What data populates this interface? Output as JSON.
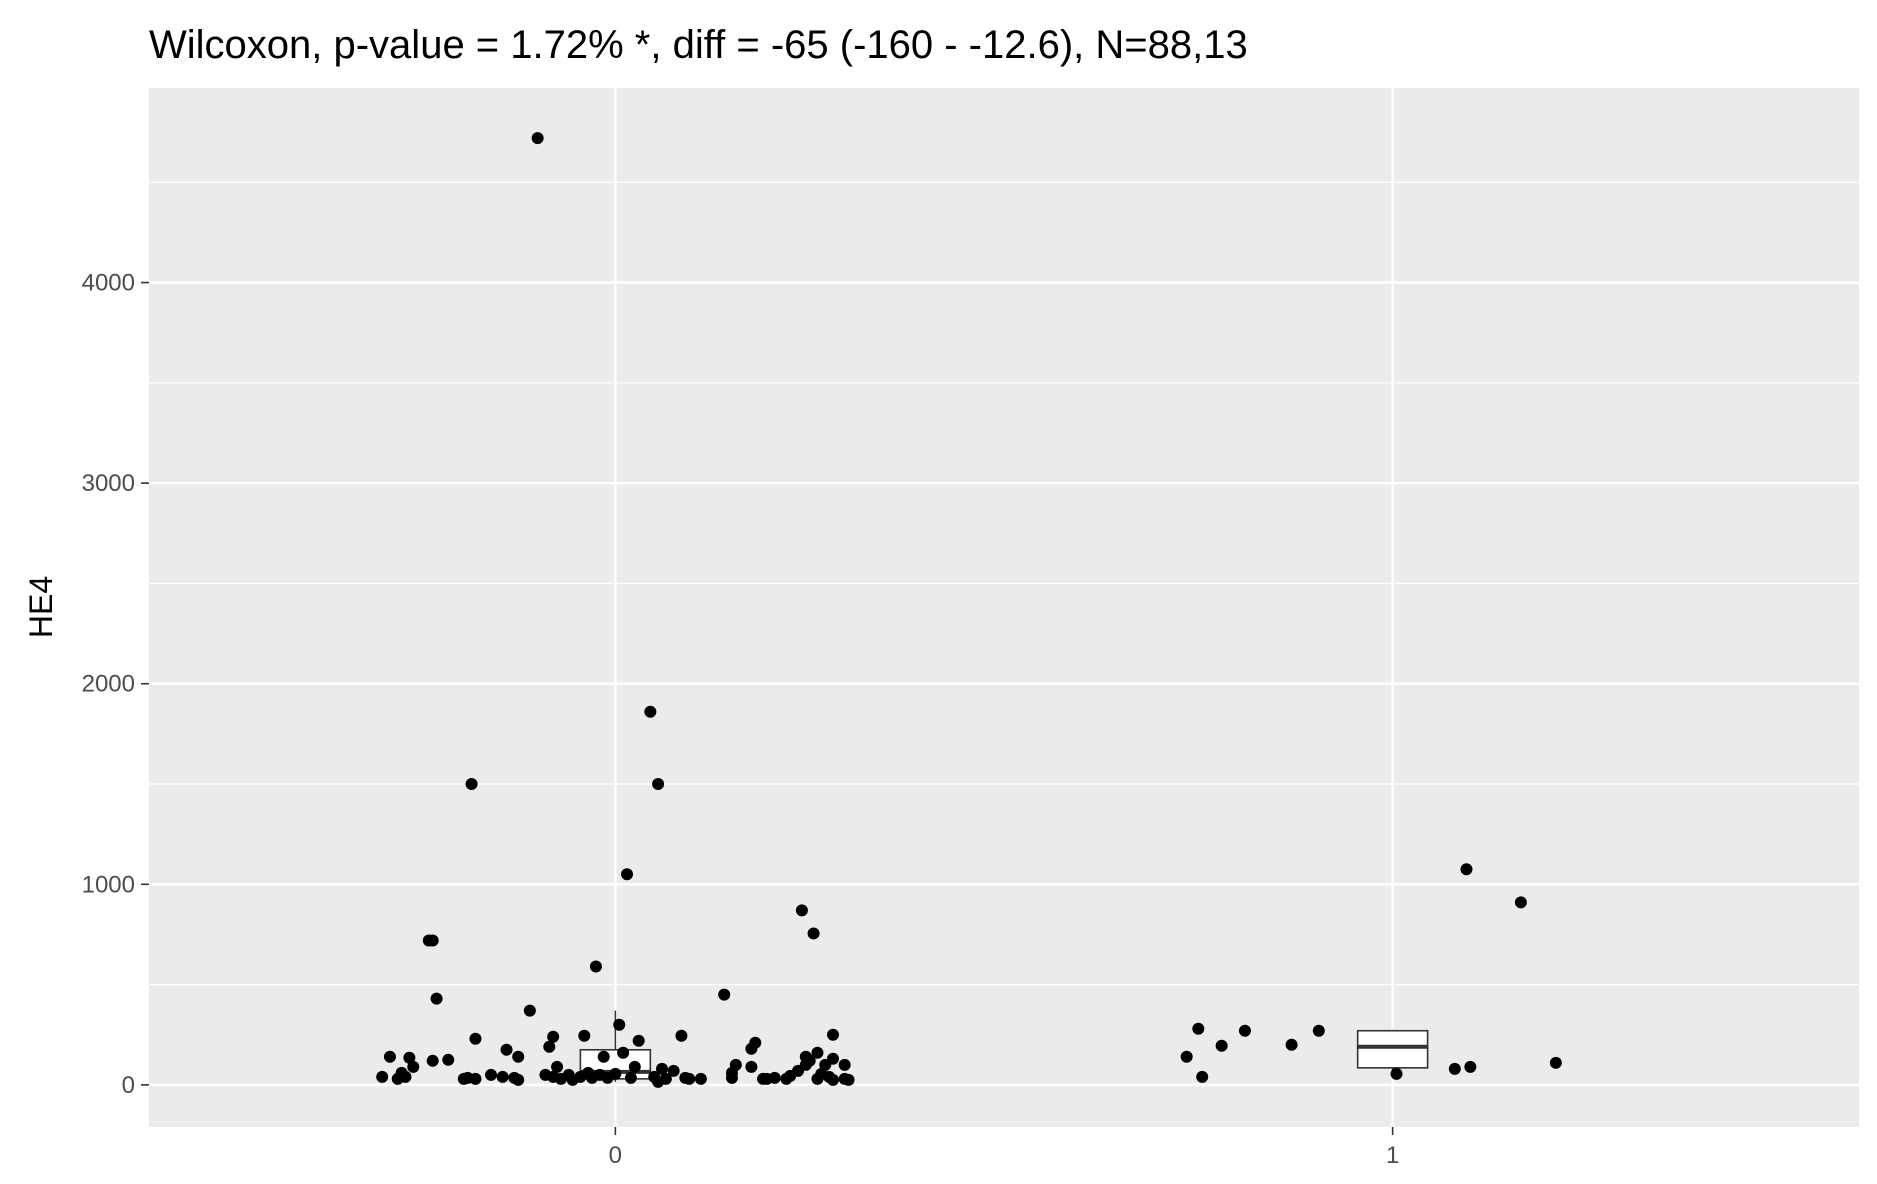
{
  "chart_data": {
    "type": "scatter",
    "title": "Wilcoxon, p-value = 1.72% *, diff = -65 (-160 - -12.6), N=88,13",
    "xlabel": "",
    "ylabel": "HE4",
    "categories": [
      "0",
      "1"
    ],
    "ylim": [
      -210,
      4970
    ],
    "yticks": [
      0,
      1000,
      2000,
      3000,
      4000
    ],
    "ytick_labels": [
      "0",
      "1000",
      "2000",
      "3000",
      "4000"
    ],
    "grid": true,
    "legend": "none",
    "colors": {
      "panel": "#ebebeb",
      "grid": "#ffffff",
      "points": "#000000",
      "box_fill": "#ffffff",
      "box_line": "#333333",
      "text": "#000000",
      "tick_text": "#4d4d4d"
    },
    "boxplots": [
      {
        "category": "0",
        "q1": 30,
        "median": 65,
        "q3": 175,
        "whisker_low": 15,
        "whisker_high": 370
      },
      {
        "category": "1",
        "q1": 85,
        "median": 190,
        "q3": 270,
        "whisker_low": 45,
        "whisker_high": 275
      }
    ],
    "series": [
      {
        "category": "0",
        "points": [
          {
            "x": -0.3,
            "y": 40
          },
          {
            "x": -0.29,
            "y": 140
          },
          {
            "x": -0.28,
            "y": 30
          },
          {
            "x": -0.275,
            "y": 60
          },
          {
            "x": -0.27,
            "y": 40
          },
          {
            "x": -0.265,
            "y": 135
          },
          {
            "x": -0.26,
            "y": 90
          },
          {
            "x": -0.24,
            "y": 720
          },
          {
            "x": -0.235,
            "y": 720
          },
          {
            "x": -0.235,
            "y": 120
          },
          {
            "x": -0.23,
            "y": 430
          },
          {
            "x": -0.215,
            "y": 125
          },
          {
            "x": -0.195,
            "y": 30
          },
          {
            "x": -0.19,
            "y": 35
          },
          {
            "x": -0.185,
            "y": 1500
          },
          {
            "x": -0.18,
            "y": 230
          },
          {
            "x": -0.18,
            "y": 30
          },
          {
            "x": -0.16,
            "y": 50
          },
          {
            "x": -0.145,
            "y": 40
          },
          {
            "x": -0.14,
            "y": 175
          },
          {
            "x": -0.13,
            "y": 35
          },
          {
            "x": -0.125,
            "y": 140
          },
          {
            "x": -0.125,
            "y": 25
          },
          {
            "x": -0.11,
            "y": 370
          },
          {
            "x": -0.1,
            "y": 4720
          },
          {
            "x": -0.09,
            "y": 50
          },
          {
            "x": -0.085,
            "y": 190
          },
          {
            "x": -0.08,
            "y": 240
          },
          {
            "x": -0.08,
            "y": 40
          },
          {
            "x": -0.075,
            "y": 90
          },
          {
            "x": -0.07,
            "y": 30
          },
          {
            "x": -0.06,
            "y": 50
          },
          {
            "x": -0.055,
            "y": 25
          },
          {
            "x": -0.045,
            "y": 40
          },
          {
            "x": -0.04,
            "y": 245
          },
          {
            "x": -0.035,
            "y": 60
          },
          {
            "x": -0.03,
            "y": 35
          },
          {
            "x": -0.025,
            "y": 590
          },
          {
            "x": -0.02,
            "y": 50
          },
          {
            "x": -0.015,
            "y": 140
          },
          {
            "x": -0.01,
            "y": 35
          },
          {
            "x": 0.0,
            "y": 55
          },
          {
            "x": 0.005,
            "y": 300
          },
          {
            "x": 0.01,
            "y": 160
          },
          {
            "x": 0.015,
            "y": 1050
          },
          {
            "x": 0.02,
            "y": 35
          },
          {
            "x": 0.025,
            "y": 90
          },
          {
            "x": 0.03,
            "y": 220
          },
          {
            "x": 0.045,
            "y": 1860
          },
          {
            "x": 0.05,
            "y": 40
          },
          {
            "x": 0.055,
            "y": 1500
          },
          {
            "x": 0.055,
            "y": 15
          },
          {
            "x": 0.06,
            "y": 80
          },
          {
            "x": 0.065,
            "y": 30
          },
          {
            "x": 0.075,
            "y": 70
          },
          {
            "x": 0.085,
            "y": 245
          },
          {
            "x": 0.09,
            "y": 35
          },
          {
            "x": 0.095,
            "y": 30
          },
          {
            "x": 0.11,
            "y": 30
          },
          {
            "x": 0.14,
            "y": 450
          },
          {
            "x": 0.15,
            "y": 60
          },
          {
            "x": 0.15,
            "y": 35
          },
          {
            "x": 0.155,
            "y": 100
          },
          {
            "x": 0.175,
            "y": 90
          },
          {
            "x": 0.175,
            "y": 180
          },
          {
            "x": 0.18,
            "y": 210
          },
          {
            "x": 0.19,
            "y": 30
          },
          {
            "x": 0.195,
            "y": 30
          },
          {
            "x": 0.205,
            "y": 35
          },
          {
            "x": 0.22,
            "y": 30
          },
          {
            "x": 0.225,
            "y": 45
          },
          {
            "x": 0.235,
            "y": 70
          },
          {
            "x": 0.24,
            "y": 870
          },
          {
            "x": 0.245,
            "y": 140
          },
          {
            "x": 0.245,
            "y": 100
          },
          {
            "x": 0.25,
            "y": 120
          },
          {
            "x": 0.255,
            "y": 755
          },
          {
            "x": 0.26,
            "y": 30
          },
          {
            "x": 0.26,
            "y": 160
          },
          {
            "x": 0.265,
            "y": 55
          },
          {
            "x": 0.27,
            "y": 100
          },
          {
            "x": 0.275,
            "y": 40
          },
          {
            "x": 0.28,
            "y": 130
          },
          {
            "x": 0.28,
            "y": 25
          },
          {
            "x": 0.28,
            "y": 250
          },
          {
            "x": 0.295,
            "y": 100
          },
          {
            "x": 0.295,
            "y": 30
          },
          {
            "x": 0.3,
            "y": 25
          }
        ]
      },
      {
        "category": "1",
        "points": [
          {
            "x": 0.735,
            "y": 140
          },
          {
            "x": 0.75,
            "y": 280
          },
          {
            "x": 0.755,
            "y": 40
          },
          {
            "x": 0.78,
            "y": 195
          },
          {
            "x": 0.81,
            "y": 270
          },
          {
            "x": 0.87,
            "y": 200
          },
          {
            "x": 0.905,
            "y": 270
          },
          {
            "x": 1.005,
            "y": 55
          },
          {
            "x": 1.08,
            "y": 80
          },
          {
            "x": 1.095,
            "y": 1075
          },
          {
            "x": 1.1,
            "y": 90
          },
          {
            "x": 1.165,
            "y": 910
          },
          {
            "x": 1.21,
            "y": 110
          }
        ]
      }
    ]
  }
}
